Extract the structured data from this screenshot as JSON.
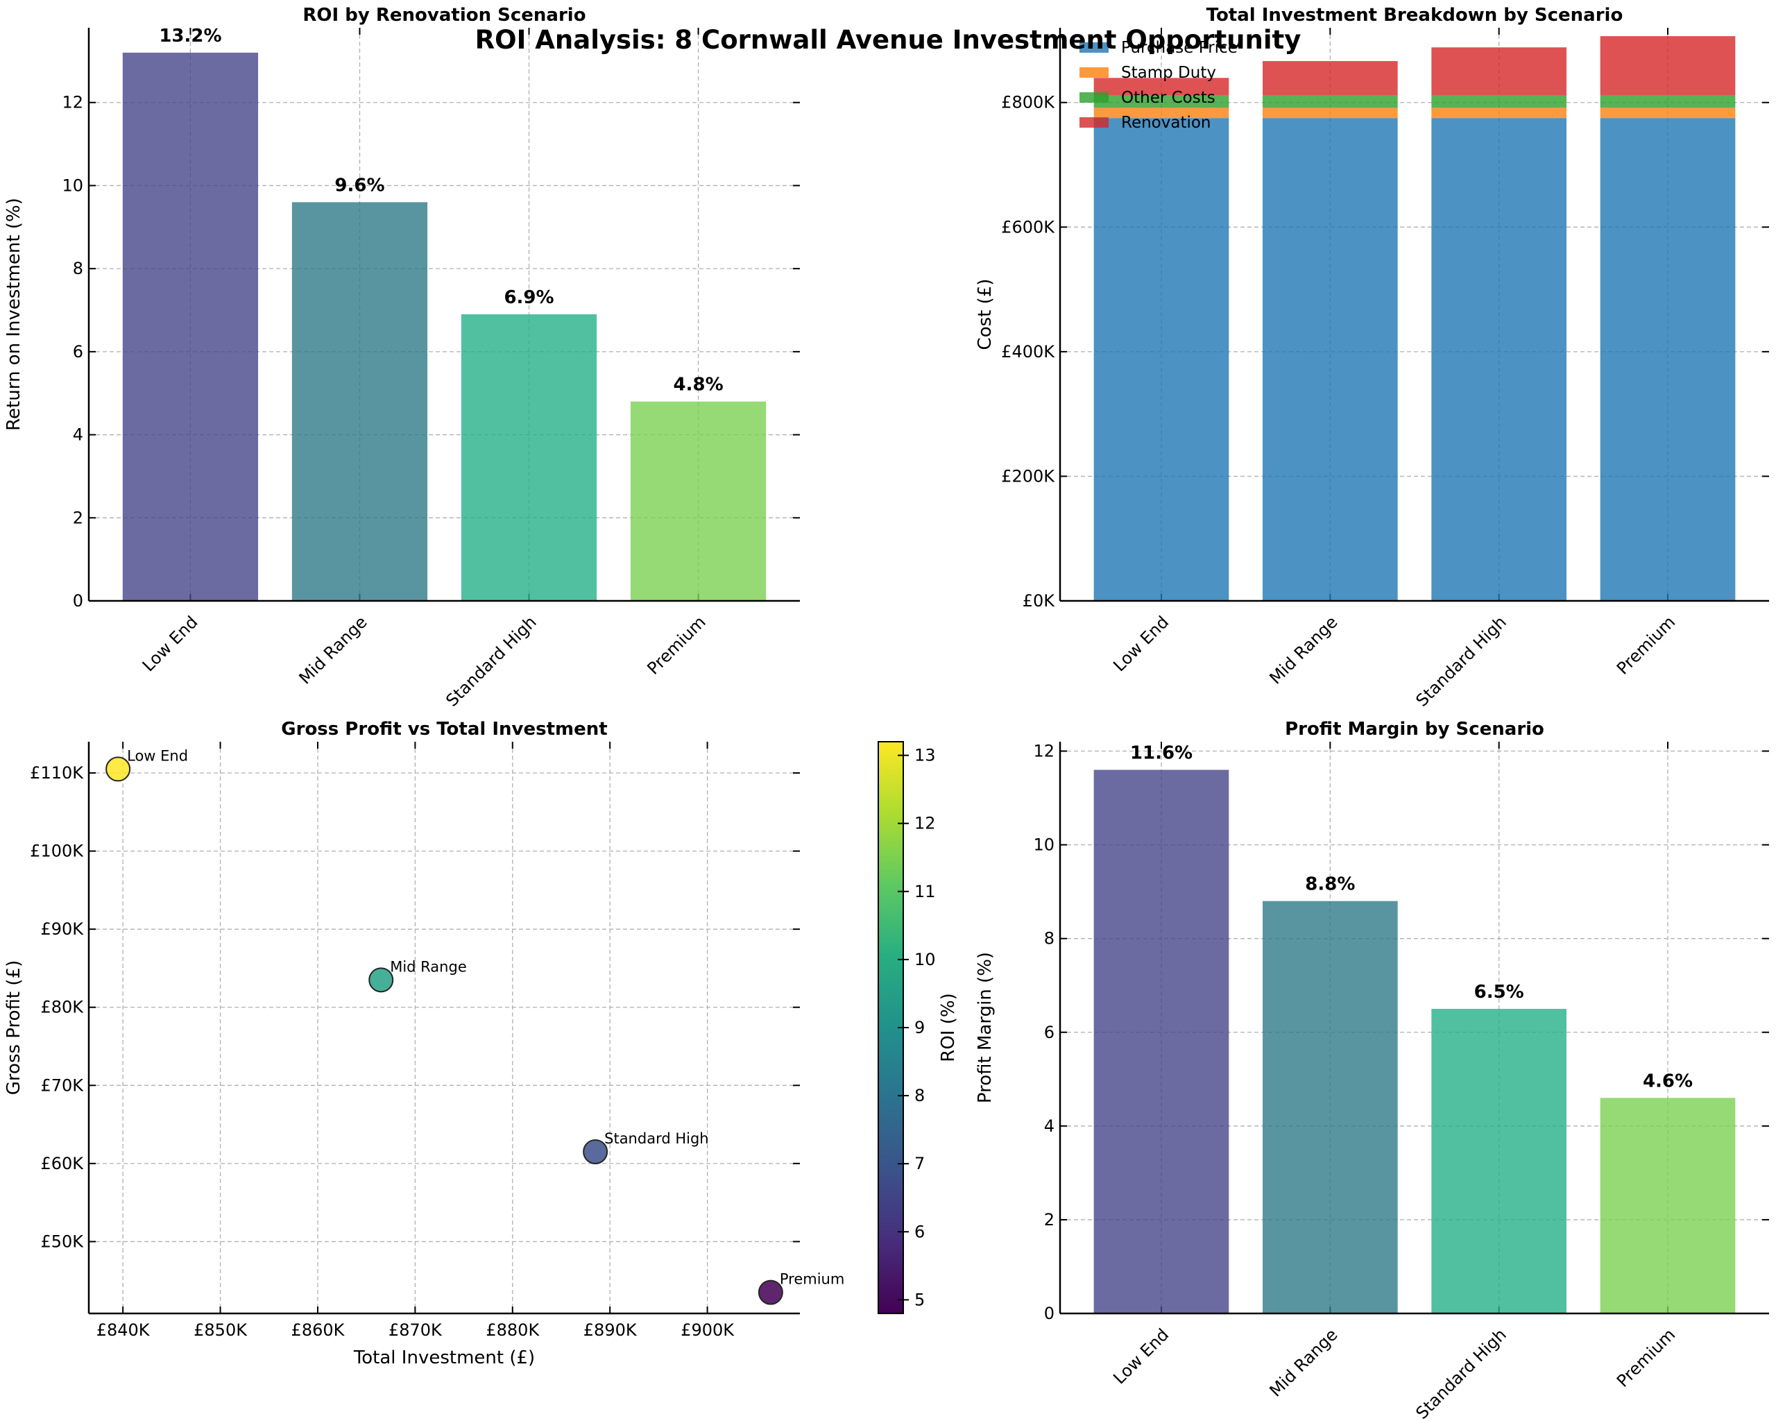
{
  "figure": {
    "suptitle": "ROI Analysis: 8 Cornwall Avenue Investment Opportunity"
  },
  "chart_data": [
    {
      "id": "roi",
      "type": "bar",
      "title": "ROI by Renovation Scenario",
      "xlabel": "",
      "ylabel": "Return on Investment (%)",
      "categories": [
        "Low End",
        "Mid Range",
        "Standard High",
        "Premium"
      ],
      "values": [
        13.2,
        9.6,
        6.9,
        4.8
      ],
      "data_labels": [
        "13.2%",
        "9.6%",
        "6.9%",
        "4.8%"
      ],
      "colors": [
        "#46468a",
        "#2f7a8a",
        "#25b08a",
        "#7ad151"
      ],
      "ylim": [
        0,
        13.8
      ],
      "yticks": [
        0,
        2,
        4,
        6,
        8,
        10,
        12
      ],
      "ytick_labels": [
        "0",
        "2",
        "4",
        "6",
        "8",
        "10",
        "12"
      ],
      "grid": true
    },
    {
      "id": "breakdown",
      "type": "bar",
      "stacked": true,
      "title": "Total Investment Breakdown by Scenario",
      "xlabel": "",
      "ylabel": "Cost (£)",
      "categories": [
        "Low End",
        "Mid Range",
        "Standard High",
        "Premium"
      ],
      "series": [
        {
          "name": "Purchase Price",
          "color": "#1f77b4",
          "values": [
            775000,
            775000,
            775000,
            775000
          ]
        },
        {
          "name": "Stamp Duty",
          "color": "#ff7f0e",
          "values": [
            16500,
            16500,
            16500,
            16500
          ]
        },
        {
          "name": "Other Costs",
          "color": "#2ca02c",
          "values": [
            20000,
            20000,
            20000,
            20000
          ]
        },
        {
          "name": "Renovation",
          "color": "#d62728",
          "values": [
            28000,
            55000,
            77000,
            95000
          ]
        }
      ],
      "ylim": [
        0,
        920000
      ],
      "yticks": [
        0,
        200000,
        400000,
        600000,
        800000
      ],
      "ytick_labels": [
        "£0K",
        "£200K",
        "£400K",
        "£600K",
        "£800K"
      ],
      "legend": "top-left",
      "grid": true
    },
    {
      "id": "scatter",
      "type": "scatter",
      "title": "Gross Profit vs Total Investment",
      "xlabel": "Total Investment (£)",
      "ylabel": "Gross Profit (£)",
      "points": [
        {
          "label": "Low End",
          "x": 839500,
          "y": 110500,
          "roi": 13.2
        },
        {
          "label": "Mid Range",
          "x": 866500,
          "y": 83500,
          "roi": 9.6
        },
        {
          "label": "Standard High",
          "x": 888500,
          "y": 61500,
          "roi": 6.9
        },
        {
          "label": "Premium",
          "x": 906500,
          "y": 43500,
          "roi": 4.8
        }
      ],
      "xlim": [
        836500,
        909500
      ],
      "ylim": [
        40800,
        114000
      ],
      "xticks": [
        840000,
        850000,
        860000,
        870000,
        880000,
        890000,
        900000
      ],
      "xtick_labels": [
        "£840K",
        "£850K",
        "£860K",
        "£870K",
        "£880K",
        "£890K",
        "£900K"
      ],
      "yticks": [
        50000,
        60000,
        70000,
        80000,
        90000,
        100000,
        110000
      ],
      "ytick_labels": [
        "£50K",
        "£60K",
        "£70K",
        "£80K",
        "£90K",
        "£100K",
        "£110K"
      ],
      "colorbar": {
        "label": "ROI (%)",
        "range": [
          4.8,
          13.2
        ],
        "ticks": [
          5,
          6,
          7,
          8,
          9,
          10,
          11,
          12,
          13
        ],
        "tick_labels": [
          "5",
          "6",
          "7",
          "8",
          "9",
          "10",
          "11",
          "12",
          "13"
        ],
        "colormap_stops": [
          "#440154",
          "#472d7b",
          "#3b528b",
          "#2c728e",
          "#21918c",
          "#28ae80",
          "#5ec962",
          "#addc30",
          "#fde725"
        ]
      },
      "grid": true
    },
    {
      "id": "margin",
      "type": "bar",
      "title": "Profit Margin by Scenario",
      "xlabel": "",
      "ylabel": "Profit Margin (%)",
      "categories": [
        "Low End",
        "Mid Range",
        "Standard High",
        "Premium"
      ],
      "values": [
        11.6,
        8.8,
        6.5,
        4.6
      ],
      "data_labels": [
        "11.6%",
        "8.8%",
        "6.5%",
        "4.6%"
      ],
      "colors": [
        "#46468a",
        "#2f7a8a",
        "#25b08a",
        "#7ad151"
      ],
      "ylim": [
        0,
        12.2
      ],
      "yticks": [
        0,
        2,
        4,
        6,
        8,
        10,
        12
      ],
      "ytick_labels": [
        "0",
        "2",
        "4",
        "6",
        "8",
        "10",
        "12"
      ],
      "grid": true
    }
  ]
}
